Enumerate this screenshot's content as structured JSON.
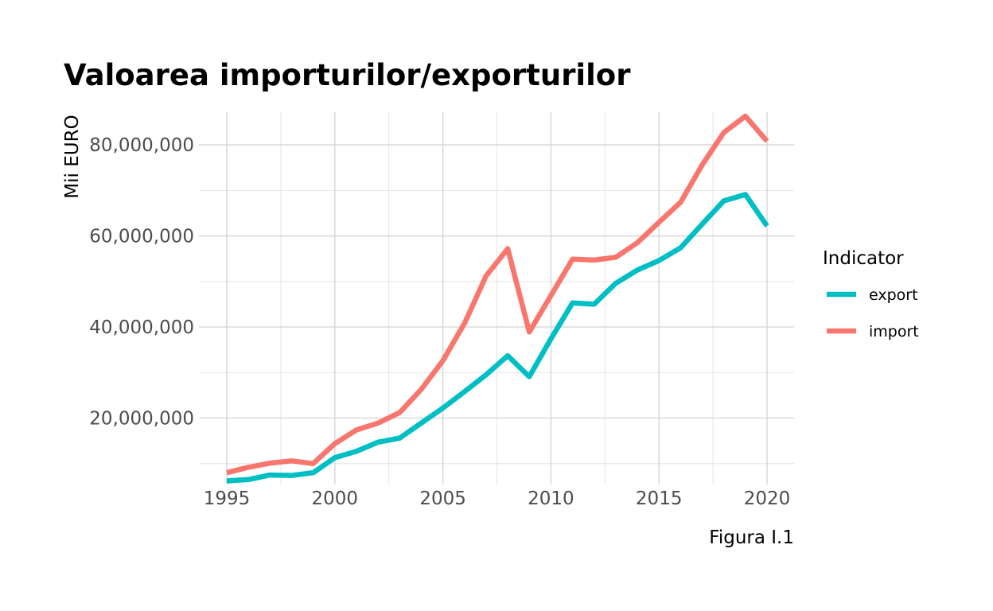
{
  "chart_data": {
    "type": "line",
    "title": "Valoarea importurilor/exporturilor",
    "xlabel": "",
    "ylabel": "Mii EURO",
    "caption": "Figura I.1",
    "x": [
      1995,
      1996,
      1997,
      1998,
      1999,
      2000,
      2001,
      2002,
      2003,
      2004,
      2005,
      2006,
      2007,
      2008,
      2009,
      2010,
      2011,
      2012,
      2013,
      2014,
      2015,
      2016,
      2017,
      2018,
      2019,
      2020
    ],
    "series": [
      {
        "name": "export",
        "color": "#00BFC4",
        "values": [
          6200000,
          6500000,
          7500000,
          7400000,
          8000000,
          11300000,
          12700000,
          14700000,
          15600000,
          18900000,
          22200000,
          25800000,
          29500000,
          33700000,
          29100000,
          37400000,
          45300000,
          45000000,
          49600000,
          52500000,
          54600000,
          57400000,
          62600000,
          67700000,
          69100000,
          62200000
        ]
      },
      {
        "name": "import",
        "color": "#F8766D",
        "values": [
          8000000,
          9200000,
          10100000,
          10600000,
          10000000,
          14400000,
          17400000,
          18900000,
          21200000,
          26300000,
          32600000,
          40800000,
          51200000,
          57200000,
          38900000,
          46900000,
          54900000,
          54700000,
          55300000,
          58500000,
          63000000,
          67400000,
          75600000,
          82700000,
          86300000,
          80800000
        ]
      }
    ],
    "xlim": [
      1995,
      2020
    ],
    "ylim": [
      6200000,
      86300000
    ],
    "x_ticks": [
      1995,
      2000,
      2005,
      2010,
      2015,
      2020
    ],
    "x_tick_labels": [
      "1995",
      "2000",
      "2005",
      "2010",
      "2015",
      "2020"
    ],
    "y_ticks": [
      20000000,
      40000000,
      60000000,
      80000000
    ],
    "y_tick_labels": [
      "20,000,000",
      "40,000,000",
      "60,000,000",
      "80,000,000"
    ],
    "grid": true,
    "legend": {
      "title": "Indicator",
      "position": "right",
      "items": [
        "export",
        "import"
      ]
    }
  }
}
